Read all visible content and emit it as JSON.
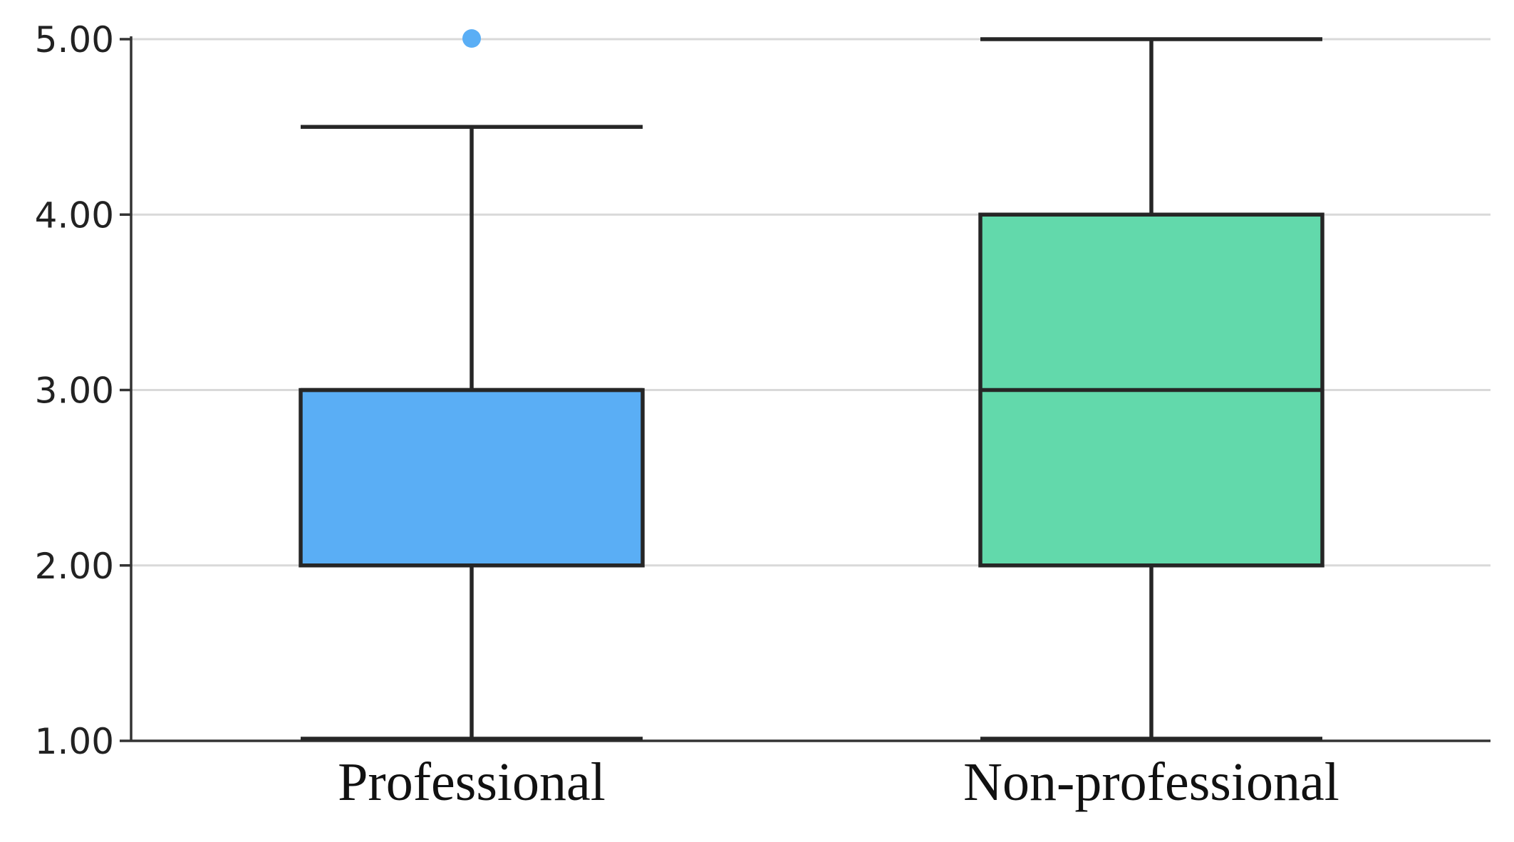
{
  "chart_data": {
    "type": "boxplot",
    "title": "",
    "xlabel": "",
    "ylabel": "",
    "ylim": [
      1.0,
      5.0
    ],
    "yticks": [
      "1.00",
      "2.00",
      "3.00",
      "4.00",
      "5.00"
    ],
    "ytick_values": [
      1,
      2,
      3,
      4,
      5
    ],
    "grid": true,
    "categories": [
      "Professional",
      "Non-professional"
    ],
    "boxes": [
      {
        "category": "Professional",
        "min": 1.0,
        "q1": 2.0,
        "median": 3.0,
        "q3": 3.0,
        "max": 4.5,
        "outliers": [
          5.0
        ],
        "color": "#5aaef5"
      },
      {
        "category": "Non-professional",
        "min": 1.0,
        "q1": 2.0,
        "median": 3.0,
        "q3": 4.0,
        "max": 5.0,
        "outliers": [],
        "color": "#62d9ab"
      }
    ]
  }
}
